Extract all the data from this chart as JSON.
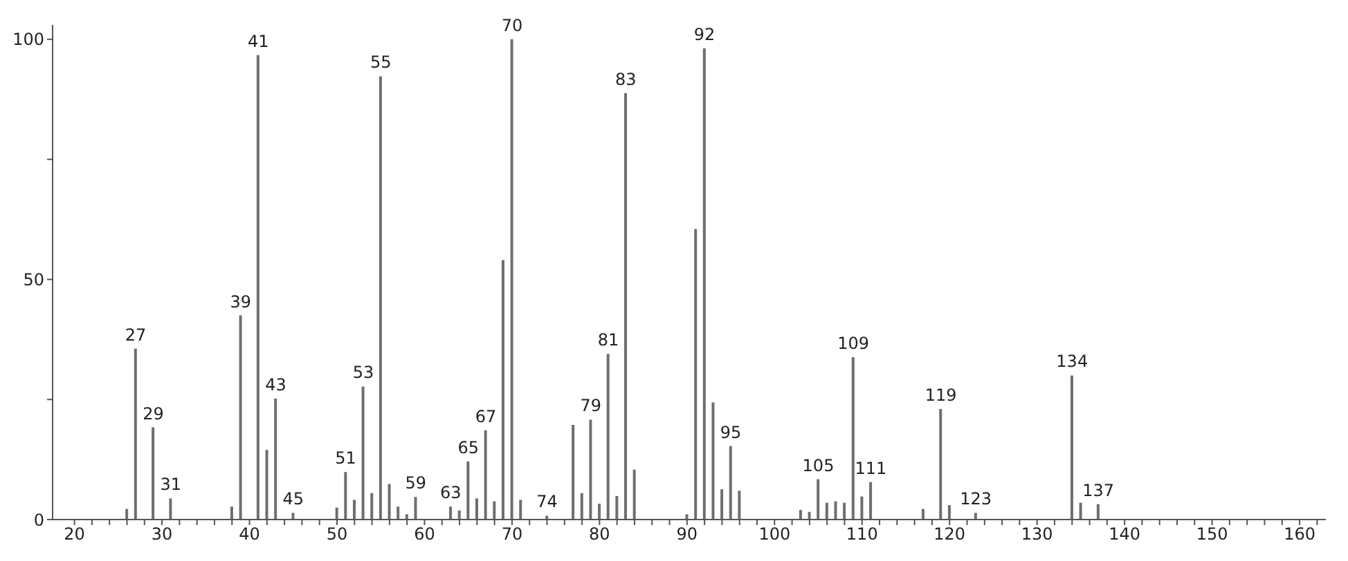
{
  "chart_data": {
    "type": "bar",
    "color": "#6e6e6e",
    "x": [
      26,
      27,
      29,
      31,
      38,
      39,
      41,
      42,
      43,
      45,
      50,
      51,
      52,
      53,
      54,
      55,
      56,
      57,
      58,
      59,
      63,
      64,
      65,
      66,
      67,
      68,
      69,
      70,
      71,
      74,
      77,
      78,
      79,
      80,
      81,
      82,
      83,
      84,
      90,
      91,
      92,
      93,
      94,
      95,
      96,
      103,
      104,
      105,
      106,
      107,
      108,
      109,
      110,
      111,
      117,
      119,
      120,
      123,
      134,
      135,
      137
    ],
    "values": [
      2.2,
      35.6,
      19.2,
      4.4,
      2.7,
      42.5,
      96.7,
      14.5,
      25.2,
      1.4,
      2.5,
      9.9,
      4.1,
      27.7,
      5.5,
      92.3,
      7.4,
      2.7,
      1.1,
      4.7,
      2.7,
      1.9,
      12.1,
      4.4,
      18.6,
      3.8,
      54,
      100,
      4.1,
      0.8,
      19.7,
      5.5,
      20.8,
      3.3,
      34.5,
      4.9,
      88.8,
      10.4,
      1.1,
      60.5,
      98.1,
      24.4,
      6.3,
      15.3,
      6,
      2,
      1.6,
      8.4,
      3.5,
      3.8,
      3.5,
      33.8,
      4.8,
      7.8,
      2.2,
      23,
      3,
      1.4,
      30,
      3.5,
      3.2
    ],
    "xlim": [
      17.5,
      163
    ],
    "ylim": [
      0,
      103
    ],
    "xticks": [
      20,
      {
        "value": 22,
        "label": null
      },
      {
        "value": 24,
        "label": null
      },
      {
        "value": 26,
        "label": null
      },
      {
        "value": 28,
        "label": null
      },
      30,
      {
        "value": 32,
        "label": null
      },
      {
        "value": 34,
        "label": null
      },
      {
        "value": 36,
        "label": null
      },
      {
        "value": 38,
        "label": null
      },
      40,
      {
        "value": 42,
        "label": null
      },
      {
        "value": 44,
        "label": null
      },
      {
        "value": 46,
        "label": null
      },
      {
        "value": 48,
        "label": null
      },
      50,
      {
        "value": 52,
        "label": null
      },
      {
        "value": 54,
        "label": null
      },
      {
        "value": 56,
        "label": null
      },
      {
        "value": 58,
        "label": null
      },
      60,
      {
        "value": 62,
        "label": null
      },
      {
        "value": 64,
        "label": null
      },
      {
        "value": 66,
        "label": null
      },
      {
        "value": 68,
        "label": null
      },
      70,
      {
        "value": 72,
        "label": null
      },
      {
        "value": 74,
        "label": null
      },
      {
        "value": 76,
        "label": null
      },
      {
        "value": 78,
        "label": null
      },
      80,
      {
        "value": 82,
        "label": null
      },
      {
        "value": 84,
        "label": null
      },
      {
        "value": 86,
        "label": null
      },
      {
        "value": 88,
        "label": null
      },
      90,
      {
        "value": 92,
        "label": null
      },
      {
        "value": 94,
        "label": null
      },
      {
        "value": 96,
        "label": null
      },
      {
        "value": 98,
        "label": null
      },
      100,
      {
        "value": 102,
        "label": null
      },
      {
        "value": 104,
        "label": null
      },
      {
        "value": 106,
        "label": null
      },
      {
        "value": 108,
        "label": null
      },
      110,
      {
        "value": 112,
        "label": null
      },
      {
        "value": 114,
        "label": null
      },
      {
        "value": 116,
        "label": null
      },
      {
        "value": 118,
        "label": null
      },
      120,
      {
        "value": 122,
        "label": null
      },
      {
        "value": 124,
        "label": null
      },
      {
        "value": 126,
        "label": null
      },
      {
        "value": 128,
        "label": null
      },
      130,
      {
        "value": 132,
        "label": null
      },
      {
        "value": 134,
        "label": null
      },
      {
        "value": 136,
        "label": null
      },
      {
        "value": 138,
        "label": null
      },
      140,
      {
        "value": 142,
        "label": null
      },
      {
        "value": 144,
        "label": null
      },
      {
        "value": 146,
        "label": null
      },
      {
        "value": 148,
        "label": null
      },
      150,
      {
        "value": 152,
        "label": null
      },
      {
        "value": 154,
        "label": null
      },
      {
        "value": 156,
        "label": null
      },
      {
        "value": 158,
        "label": null
      },
      160,
      {
        "value": 162,
        "label": null
      }
    ],
    "yticks": [
      0,
      {
        "value": 25,
        "label": null
      },
      50,
      {
        "value": 75,
        "label": null
      },
      100
    ],
    "annotations": [
      {
        "text": "27",
        "x": 27,
        "y": 35.6
      },
      {
        "text": "29",
        "x": 29,
        "y": 19.2
      },
      {
        "text": "31",
        "x": 31,
        "y": 4.4
      },
      {
        "text": "39",
        "x": 39,
        "y": 42.5
      },
      {
        "text": "41",
        "x": 41,
        "y": 96.7
      },
      {
        "text": "43",
        "x": 43,
        "y": 25.2
      },
      {
        "text": "45",
        "x": 45,
        "y": 1.4
      },
      {
        "text": "51",
        "x": 51,
        "y": 9.9
      },
      {
        "text": "53",
        "x": 53,
        "y": 27.7
      },
      {
        "text": "55",
        "x": 55,
        "y": 92.3
      },
      {
        "text": "59",
        "x": 59,
        "y": 4.7
      },
      {
        "text": "63",
        "x": 63,
        "y": 2.7
      },
      {
        "text": "65",
        "x": 65,
        "y": 12.1
      },
      {
        "text": "67",
        "x": 67,
        "y": 18.6
      },
      {
        "text": "70",
        "x": 70,
        "y": 100
      },
      {
        "text": "74",
        "x": 74,
        "y": 0.8
      },
      {
        "text": "79",
        "x": 79,
        "y": 20.8
      },
      {
        "text": "81",
        "x": 81,
        "y": 34.5
      },
      {
        "text": "83",
        "x": 83,
        "y": 88.8
      },
      {
        "text": "92",
        "x": 92,
        "y": 98.1
      },
      {
        "text": "95",
        "x": 95,
        "y": 15.3
      },
      {
        "text": "105",
        "x": 105,
        "y": 8.4
      },
      {
        "text": "109",
        "x": 109,
        "y": 33.8
      },
      {
        "text": "111",
        "x": 111,
        "y": 7.8
      },
      {
        "text": "119",
        "x": 119,
        "y": 23
      },
      {
        "text": "123",
        "x": 123,
        "y": 1.4
      },
      {
        "text": "134",
        "x": 134,
        "y": 30
      },
      {
        "text": "137",
        "x": 137,
        "y": 3.2
      }
    ]
  }
}
